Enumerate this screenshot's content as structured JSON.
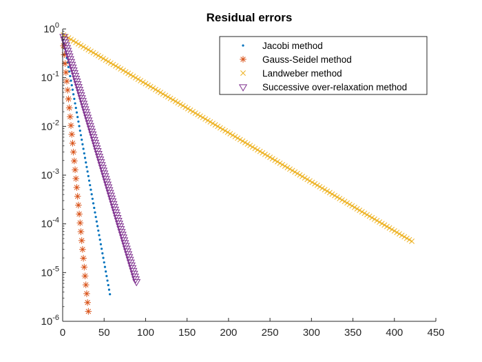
{
  "chart_data": {
    "type": "scatter",
    "title": "Residual errors",
    "xlabel": "",
    "ylabel": "",
    "xlim": [
      0,
      450
    ],
    "ylim": [
      1e-06,
      1
    ],
    "yscale": "log",
    "grid": false,
    "legend_position": "top-right",
    "x_ticks": [
      0,
      50,
      100,
      150,
      200,
      250,
      300,
      350,
      400,
      450
    ],
    "x_tick_labels": [
      "0",
      "50",
      "100",
      "150",
      "200",
      "250",
      "300",
      "350",
      "400",
      "450"
    ],
    "y_ticks": [
      {
        "value": 1e-06,
        "base": "10",
        "exp": "-6"
      },
      {
        "value": 1e-05,
        "base": "10",
        "exp": "-5"
      },
      {
        "value": 0.0001,
        "base": "10",
        "exp": "-4"
      },
      {
        "value": 0.001,
        "base": "10",
        "exp": "-3"
      },
      {
        "value": 0.01,
        "base": "10",
        "exp": "-2"
      },
      {
        "value": 0.1,
        "base": "10",
        "exp": "-1"
      },
      {
        "value": 1,
        "base": "10",
        "exp": "0"
      }
    ],
    "series": [
      {
        "name": "Jacobi method",
        "marker": "point",
        "color": "#0072BD",
        "x_start": 1,
        "x_end": 57,
        "x_step": 1,
        "y_start": 0.6,
        "y_end": 3.6e-06
      },
      {
        "name": "Gauss-Seidel method",
        "marker": "asterisk",
        "color": "#D95319",
        "x_start": 1,
        "x_end": 31,
        "x_step": 1,
        "y_start": 0.45,
        "y_end": 1.6e-06
      },
      {
        "name": "Landweber method",
        "marker": "x",
        "color": "#EDB120",
        "x_start": 1,
        "x_end": 421,
        "x_step": 3,
        "y_start": 0.75,
        "y_end": 4.4e-05
      },
      {
        "name": "Successive over-relaxation method",
        "marker": "triangle-down",
        "color": "#7E2F8E",
        "x_start": 1,
        "x_end": 89,
        "x_step": 1,
        "y_start": 0.7,
        "y_end": 6.5e-06
      }
    ]
  }
}
